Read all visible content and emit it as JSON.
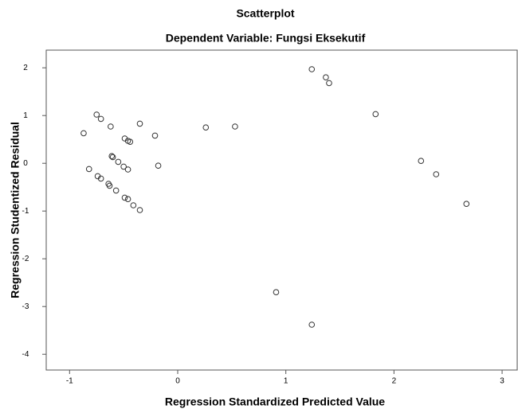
{
  "chart_data": {
    "type": "scatter",
    "title": "Scatterplot",
    "subtitle": "Dependent Variable: Fungsi Eksekutif",
    "x_label": "Regression Standardized Predicted Value",
    "y_label": "Regression Studentized Residual",
    "color": "#333333",
    "x": [
      1.24,
      1.37,
      1.4,
      1.83,
      -0.75,
      -0.71,
      -0.62,
      -0.35,
      -0.87,
      -0.21,
      -0.49,
      -0.46,
      -0.44,
      0.26,
      0.53,
      -0.61,
      -0.6,
      -0.55,
      -0.5,
      -0.46,
      -0.18,
      -0.82,
      -0.74,
      -0.71,
      -0.64,
      -0.63,
      -0.57,
      -0.49,
      -0.46,
      -0.41,
      -0.35,
      2.25,
      2.39,
      2.67,
      0.91,
      1.24
    ],
    "values": [
      1.97,
      1.8,
      1.68,
      1.03,
      1.02,
      0.93,
      0.77,
      0.83,
      0.63,
      0.58,
      0.52,
      0.47,
      0.45,
      0.75,
      0.77,
      0.15,
      0.13,
      0.03,
      -0.07,
      -0.13,
      -0.05,
      -0.12,
      -0.27,
      -0.32,
      -0.43,
      -0.47,
      -0.57,
      -0.72,
      -0.75,
      -0.88,
      -0.98,
      0.05,
      -0.23,
      -0.85,
      -2.7,
      -3.38
    ],
    "xlim": [
      -1.216,
      3.147
    ],
    "ylim": [
      -4.33,
      2.37
    ],
    "xticks": [
      -1,
      0,
      1,
      2,
      3
    ],
    "yticks": [
      -4,
      -3,
      -2,
      -1,
      0,
      1,
      2
    ]
  }
}
